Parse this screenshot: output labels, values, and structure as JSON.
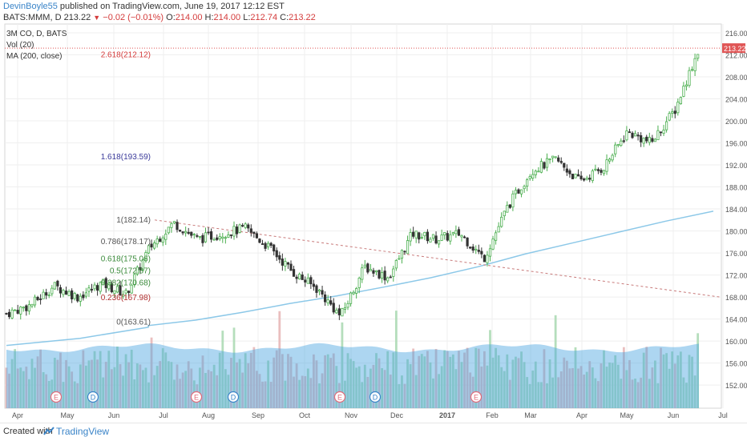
{
  "header": {
    "author": "DevinBoyle55",
    "published": " published on TradingView.com, June 19, 2017 12:12 EST",
    "symbol_line": "BATS:MMM, D 213.22",
    "change": "−0.02 (−0.01%)",
    "o_label": " O:",
    "o_value": "214.00",
    "h_label": " H:",
    "h_value": "214.00",
    "l_label": " L:",
    "l_value": "212.74",
    "c_label": " C:",
    "c_value": "213.22"
  },
  "legend": {
    "title": "3M CO, D, BATS",
    "vol": "Vol (20)",
    "ma": "MA (200, close)"
  },
  "footer": {
    "created_with": "Created with",
    "brand": "TradingView"
  },
  "colors": {
    "up": "#4caf50",
    "down": "#333333",
    "ma": "#8cc8e8",
    "volume": "#4aa3df",
    "fib_line": "#2f2f8f",
    "price_tag": "#e05555"
  },
  "chart_data": {
    "type": "candlestick",
    "price_axis": {
      "ticks": [
        "216.00",
        "212.00",
        "208.00",
        "204.00",
        "200.00",
        "196.00",
        "192.00",
        "188.00",
        "184.00",
        "180.00",
        "176.00",
        "172.00",
        "168.00",
        "164.00",
        "160.00",
        "156.00",
        "152.00"
      ],
      "range": [
        147.8,
        217.6
      ],
      "last_price": "213.22"
    },
    "time_axis": {
      "labels": [
        "Apr",
        "May",
        "Jun",
        "Jul",
        "Aug",
        "Sep",
        "Oct",
        "Nov",
        "Dec",
        "2017",
        "Feb",
        "Mar",
        "Apr",
        "May",
        "Jun",
        "Jul"
      ]
    },
    "fib_levels": [
      {
        "label": "2.618(212.12)",
        "value": 212.12
      },
      {
        "label": "1.618(193.59)",
        "value": 193.59
      },
      {
        "label": "1(182.14)",
        "value": 182.14
      },
      {
        "label": "0.786(178.17)",
        "value": 178.17
      },
      {
        "label": "0.618(175.06)",
        "value": 175.06
      },
      {
        "label": "0.5(172.87)",
        "value": 172.87
      },
      {
        "label": "0.382(170.68)",
        "value": 170.68
      },
      {
        "label": "0.236(167.98)",
        "value": 167.98
      },
      {
        "label": "0(163.61)",
        "value": 163.61
      }
    ],
    "fib_band_colors": [
      "#e6d0f3",
      "#f5cfcc",
      "#d2d2f3",
      "#e3e3e3",
      "#d2e6f5",
      "#cfeeda",
      "#d9f0d3",
      "#eef3c8",
      "#f5cfcc"
    ],
    "fib_top": 216.8,
    "trendline": {
      "from": [
        "Jul",
        182.0
      ],
      "to": [
        "Jul",
        168.0
      ]
    },
    "price_path": [
      [
        "Apr",
        165
      ],
      [
        "Apr",
        166.5
      ],
      [
        "May",
        170
      ],
      [
        "May",
        168
      ],
      [
        "Jun",
        170.5
      ],
      [
        "Jun",
        168.5
      ],
      [
        "Jul",
        177
      ],
      [
        "Jul",
        181.5
      ],
      [
        "Aug",
        178.5
      ],
      [
        "Aug",
        179.5
      ],
      [
        "Sep",
        180.5
      ],
      [
        "Sep",
        177
      ],
      [
        "Oct",
        172.5
      ],
      [
        "Oct",
        169.5
      ],
      [
        "Nov",
        164.5
      ],
      [
        "Nov",
        173.5
      ],
      [
        "Dec",
        171.5
      ],
      [
        "Dec",
        179.5
      ],
      [
        "2017",
        178.5
      ],
      [
        "2017",
        179.5
      ],
      [
        "Feb",
        175
      ],
      [
        "Feb",
        184.5
      ],
      [
        "Mar",
        191
      ],
      [
        "Mar",
        193
      ],
      [
        "Apr",
        189
      ],
      [
        "Apr",
        191.5
      ],
      [
        "May",
        198
      ],
      [
        "May",
        196
      ],
      [
        "Jun",
        202
      ],
      [
        "Jun",
        213.2
      ]
    ],
    "ma_path": [
      [
        "Jul",
        162.8
      ],
      [
        "Aug",
        163.8
      ],
      [
        "Sep",
        165.2
      ],
      [
        "Oct",
        166.8
      ],
      [
        "Nov",
        168.2
      ],
      [
        "Dec",
        169.8
      ],
      [
        "2017",
        171.5
      ],
      [
        "Feb",
        173.5
      ],
      [
        "Mar",
        175.8
      ],
      [
        "Apr",
        177.8
      ],
      [
        "May",
        179.8
      ],
      [
        "Jun",
        181.8
      ],
      [
        "Jun",
        183.6
      ]
    ],
    "volume": {
      "baseline_range": [
        147.8,
        160.2
      ]
    },
    "events": [
      {
        "type": "E",
        "month": "May"
      },
      {
        "type": "D",
        "month": "May"
      },
      {
        "type": "E",
        "month": "Aug"
      },
      {
        "type": "D",
        "month": "Aug"
      },
      {
        "type": "E",
        "month": "Oct"
      },
      {
        "type": "D",
        "month": "Nov"
      },
      {
        "type": "E",
        "month": "Feb"
      }
    ]
  }
}
